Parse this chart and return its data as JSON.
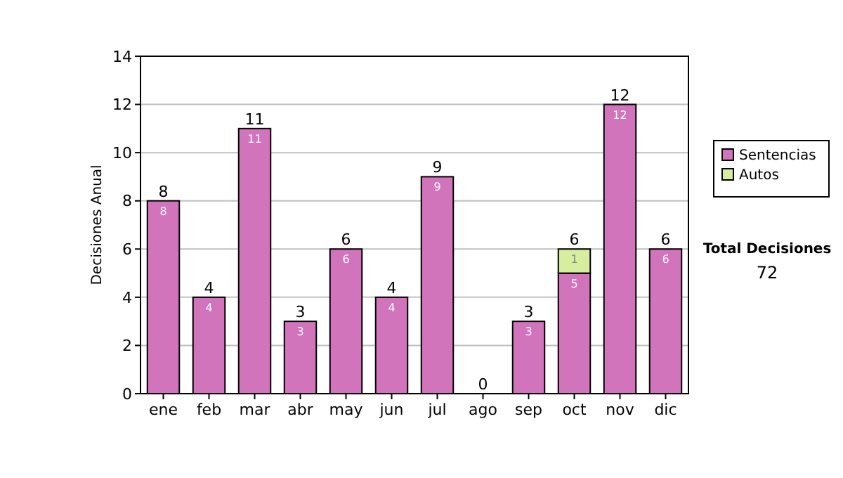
{
  "chart_data": {
    "type": "bar",
    "stacked": true,
    "ylabel": "Decisiones Anual",
    "categories": [
      "ene",
      "feb",
      "mar",
      "abr",
      "may",
      "jun",
      "jul",
      "ago",
      "sep",
      "oct",
      "nov",
      "dic"
    ],
    "series": [
      {
        "name": "Sentencias",
        "color": "#d274bc",
        "values": [
          8,
          4,
          11,
          3,
          6,
          4,
          9,
          0,
          3,
          5,
          12,
          6
        ],
        "value_labels": [
          "8",
          "4",
          "11",
          "3",
          "6",
          "4",
          "9",
          null,
          "3",
          "5",
          "12",
          "6"
        ]
      },
      {
        "name": "Autos",
        "color": "#d6ee9e",
        "values": [
          null,
          null,
          null,
          null,
          null,
          null,
          null,
          null,
          null,
          1,
          null,
          null
        ],
        "value_labels": [
          null,
          null,
          null,
          null,
          null,
          null,
          null,
          null,
          null,
          "1",
          null,
          null
        ]
      }
    ],
    "totals": [
      "8",
      "4",
      "11",
      "3",
      "6",
      "4",
      "9",
      "0",
      "3",
      "6",
      "12",
      "6"
    ],
    "ylim": [
      0,
      14
    ],
    "yticks": [
      0,
      2,
      4,
      6,
      8,
      10,
      12,
      14
    ],
    "grid": "y",
    "legend": "right",
    "annotations": [
      "Total Decisiones",
      "72"
    ]
  }
}
